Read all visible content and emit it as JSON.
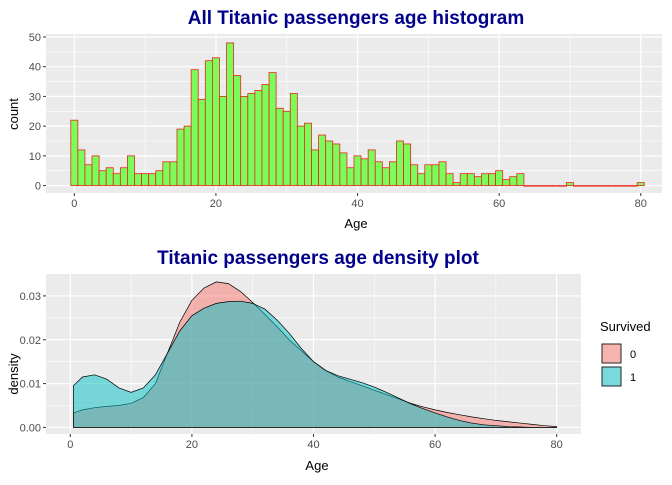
{
  "colors": {
    "title": "#00008B",
    "panel_bg": "#EBEBEB",
    "grid": "#FFFFFF",
    "hist_fill": "#7CFC5A",
    "hist_stroke": "#E8261A",
    "density_0": "#F8766D",
    "density_1": "#00BFC4"
  },
  "chart_data": [
    {
      "type": "bar",
      "title": "All Titanic passengers age histogram",
      "xlabel": "Age",
      "ylabel": "count",
      "xlim": [
        -4,
        83
      ],
      "ylim": [
        -2.5,
        51
      ],
      "x_ticks": [
        0,
        20,
        40,
        60,
        80
      ],
      "y_ticks": [
        0,
        10,
        20,
        30,
        40,
        50
      ],
      "bin_width": 1,
      "x": [
        0,
        1,
        2,
        3,
        4,
        5,
        6,
        7,
        8,
        9,
        10,
        11,
        12,
        13,
        14,
        15,
        16,
        17,
        18,
        19,
        20,
        21,
        22,
        23,
        24,
        25,
        26,
        27,
        28,
        29,
        30,
        31,
        32,
        33,
        34,
        35,
        36,
        37,
        38,
        39,
        40,
        41,
        42,
        43,
        44,
        45,
        46,
        47,
        48,
        49,
        50,
        51,
        52,
        53,
        54,
        55,
        56,
        57,
        58,
        59,
        60,
        61,
        62,
        63,
        64,
        65,
        66,
        67,
        68,
        69,
        70,
        71,
        72,
        73,
        74,
        75,
        76,
        77,
        78,
        79,
        80
      ],
      "values": [
        22,
        12,
        7,
        10,
        5,
        6,
        4,
        6,
        10,
        4,
        4,
        4,
        5,
        8,
        8,
        19,
        20,
        39,
        29,
        42,
        43,
        30,
        48,
        37,
        30,
        31,
        32,
        34,
        38,
        26,
        25,
        31,
        20,
        21,
        12,
        17,
        15,
        14,
        11,
        6,
        10,
        9,
        12,
        8,
        6,
        8,
        15,
        14,
        7,
        4,
        7,
        7,
        8,
        4,
        1,
        4,
        4,
        3,
        4,
        4,
        5,
        2,
        3,
        4,
        0,
        0,
        0,
        0,
        0,
        0,
        1,
        0,
        0,
        0,
        0,
        0,
        0,
        0,
        0,
        0,
        1
      ],
      "grid": true
    },
    {
      "type": "area",
      "title": "Titanic passengers age density plot",
      "xlabel": "Age",
      "ylabel": "density",
      "xlim": [
        -4,
        84
      ],
      "ylim": [
        -0.0015,
        0.035
      ],
      "x_ticks": [
        0,
        20,
        40,
        60,
        80
      ],
      "y_ticks": [
        0.0,
        0.01,
        0.02,
        0.03
      ],
      "y_tick_labels": [
        "0.00",
        "0.01",
        "0.02",
        "0.03"
      ],
      "legend": {
        "title": "Survived",
        "position": "right"
      },
      "grid": true,
      "series": [
        {
          "name": "0",
          "x": [
            0.5,
            2,
            4,
            6,
            8,
            10,
            12,
            14,
            16,
            18,
            20,
            22,
            24,
            26,
            28,
            30,
            32,
            34,
            36,
            38,
            40,
            42,
            44,
            46,
            48,
            50,
            52,
            54,
            56,
            58,
            60,
            62,
            64,
            66,
            68,
            70,
            72,
            74,
            76,
            78,
            80
          ],
          "y": [
            0.0033,
            0.004,
            0.0045,
            0.0048,
            0.005,
            0.0055,
            0.0068,
            0.01,
            0.017,
            0.024,
            0.029,
            0.0318,
            0.0332,
            0.0328,
            0.031,
            0.0285,
            0.0258,
            0.023,
            0.02,
            0.0175,
            0.015,
            0.013,
            0.0115,
            0.0105,
            0.0095,
            0.0085,
            0.0075,
            0.0065,
            0.0055,
            0.0047,
            0.004,
            0.0034,
            0.0029,
            0.0024,
            0.002,
            0.0016,
            0.0013,
            0.001,
            0.0007,
            0.0004,
            0.0002
          ]
        },
        {
          "name": "1",
          "x": [
            0.5,
            2,
            4,
            6,
            8,
            10,
            12,
            14,
            16,
            18,
            20,
            22,
            24,
            26,
            28,
            30,
            32,
            34,
            36,
            38,
            40,
            42,
            44,
            46,
            48,
            50,
            52,
            54,
            56,
            58,
            60,
            62,
            64,
            66,
            68,
            70,
            72,
            74,
            76,
            78,
            80
          ],
          "y": [
            0.0095,
            0.0115,
            0.012,
            0.011,
            0.009,
            0.008,
            0.009,
            0.012,
            0.017,
            0.022,
            0.0255,
            0.0272,
            0.0283,
            0.0287,
            0.0288,
            0.0283,
            0.027,
            0.0245,
            0.0215,
            0.018,
            0.015,
            0.013,
            0.0118,
            0.011,
            0.0102,
            0.0092,
            0.008,
            0.0067,
            0.0054,
            0.0043,
            0.0033,
            0.0024,
            0.0016,
            0.001,
            0.0006,
            0.0004,
            0.0002,
            0.0001,
            0.0,
            0.0,
            0.0
          ]
        }
      ]
    }
  ]
}
